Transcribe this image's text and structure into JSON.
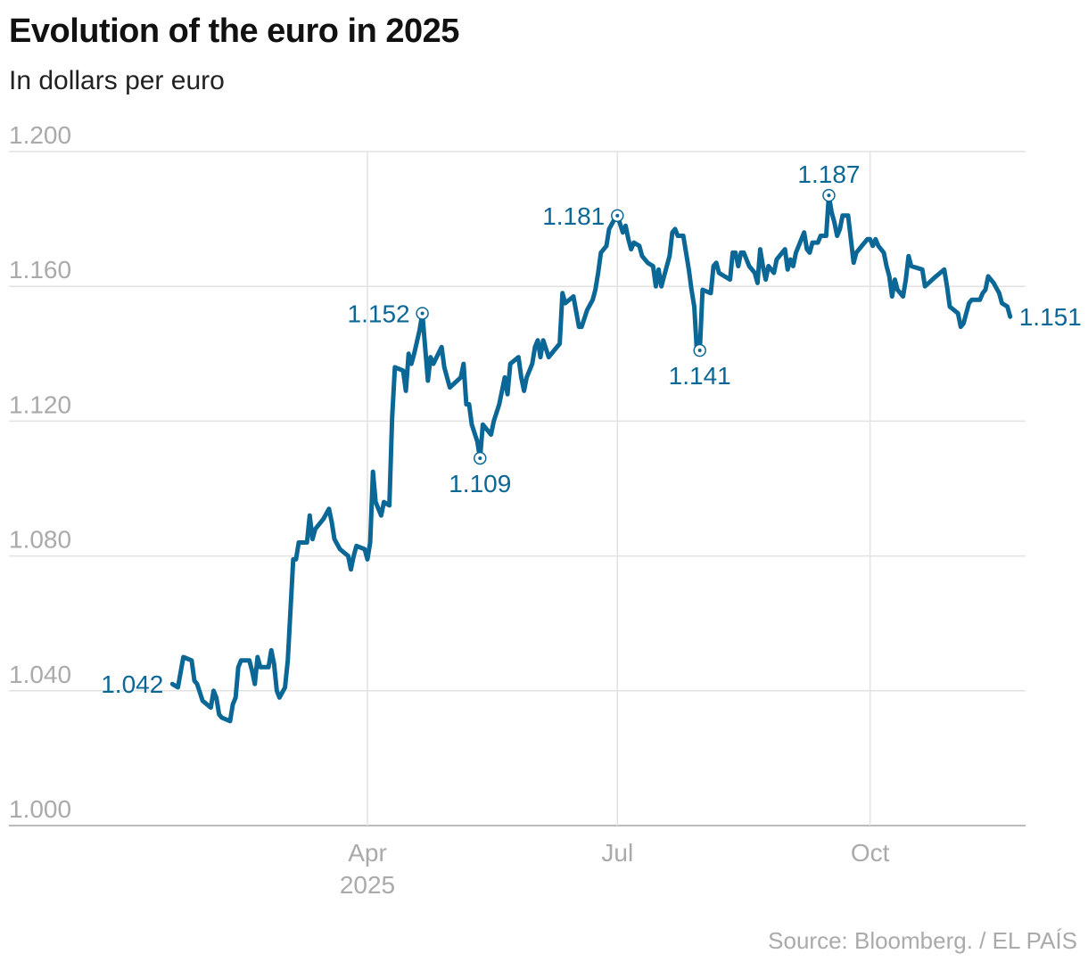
{
  "chart_data": {
    "type": "line",
    "title": "Evolution of the euro in 2025",
    "subtitle": "In dollars per euro",
    "source": "Source: Bloomberg. / EL PAÍS",
    "ylim": [
      1.0,
      1.2
    ],
    "yticks": [
      "1.000",
      "1.040",
      "1.080",
      "1.120",
      "1.160",
      "1.200"
    ],
    "xticks": [
      {
        "date": "2025-04-01",
        "label": "Apr",
        "sublabel": "2025"
      },
      {
        "date": "2025-07-01",
        "label": "Jul",
        "sublabel": ""
      },
      {
        "date": "2025-10-01",
        "label": "Oct",
        "sublabel": ""
      }
    ],
    "grid": true,
    "color": "#0b6796",
    "annotations": [
      {
        "date": "2025-01-20",
        "value": 1.042,
        "label": "1.042",
        "position": "left",
        "marker": false
      },
      {
        "date": "2025-04-21",
        "value": 1.152,
        "label": "1.152",
        "position": "left",
        "marker": true
      },
      {
        "date": "2025-05-12",
        "value": 1.109,
        "label": "1.109",
        "position": "below",
        "marker": true
      },
      {
        "date": "2025-07-01",
        "value": 1.181,
        "label": "1.181",
        "position": "left",
        "marker": true
      },
      {
        "date": "2025-07-31",
        "value": 1.141,
        "label": "1.141",
        "position": "below",
        "marker": true
      },
      {
        "date": "2025-09-16",
        "value": 1.187,
        "label": "1.187",
        "position": "above",
        "marker": true
      },
      {
        "date": "2025-11-21",
        "value": 1.151,
        "label": "1.151",
        "position": "right",
        "marker": false
      }
    ],
    "series": [
      {
        "points": [
          [
            "2025-01-20",
            1.042
          ],
          [
            "2025-01-22",
            1.041
          ],
          [
            "2025-01-24",
            1.05
          ],
          [
            "2025-01-27",
            1.049
          ],
          [
            "2025-01-28",
            1.043
          ],
          [
            "2025-01-29",
            1.042
          ],
          [
            "2025-01-31",
            1.037
          ],
          [
            "2025-02-03",
            1.035
          ],
          [
            "2025-02-04",
            1.04
          ],
          [
            "2025-02-05",
            1.038
          ],
          [
            "2025-02-06",
            1.033
          ],
          [
            "2025-02-07",
            1.032
          ],
          [
            "2025-02-10",
            1.031
          ],
          [
            "2025-02-11",
            1.036
          ],
          [
            "2025-02-12",
            1.038
          ],
          [
            "2025-02-13",
            1.047
          ],
          [
            "2025-02-14",
            1.049
          ],
          [
            "2025-02-17",
            1.049
          ],
          [
            "2025-02-18",
            1.046
          ],
          [
            "2025-02-19",
            1.042
          ],
          [
            "2025-02-20",
            1.05
          ],
          [
            "2025-02-21",
            1.047
          ],
          [
            "2025-02-24",
            1.047
          ],
          [
            "2025-02-25",
            1.052
          ],
          [
            "2025-02-26",
            1.048
          ],
          [
            "2025-02-27",
            1.04
          ],
          [
            "2025-02-28",
            1.038
          ],
          [
            "2025-03-02",
            1.041
          ],
          [
            "2025-03-03",
            1.049
          ],
          [
            "2025-03-05",
            1.079
          ],
          [
            "2025-03-06",
            1.079
          ],
          [
            "2025-03-07",
            1.084
          ],
          [
            "2025-03-10",
            1.084
          ],
          [
            "2025-03-11",
            1.092
          ],
          [
            "2025-03-12",
            1.085
          ],
          [
            "2025-03-13",
            1.088
          ],
          [
            "2025-03-16",
            1.091
          ],
          [
            "2025-03-18",
            1.094
          ],
          [
            "2025-03-19",
            1.09
          ],
          [
            "2025-03-20",
            1.085
          ],
          [
            "2025-03-22",
            1.082
          ],
          [
            "2025-03-25",
            1.08
          ],
          [
            "2025-03-26",
            1.076
          ],
          [
            "2025-03-27",
            1.08
          ],
          [
            "2025-03-28",
            1.083
          ],
          [
            "2025-03-31",
            1.082
          ],
          [
            "2025-04-01",
            1.079
          ],
          [
            "2025-04-02",
            1.084
          ],
          [
            "2025-04-03",
            1.105
          ],
          [
            "2025-04-04",
            1.096
          ],
          [
            "2025-04-06",
            1.092
          ],
          [
            "2025-04-07",
            1.096
          ],
          [
            "2025-04-09",
            1.095
          ],
          [
            "2025-04-10",
            1.121
          ],
          [
            "2025-04-11",
            1.136
          ],
          [
            "2025-04-14",
            1.135
          ],
          [
            "2025-04-15",
            1.129
          ],
          [
            "2025-04-16",
            1.14
          ],
          [
            "2025-04-17",
            1.137
          ],
          [
            "2025-04-18",
            1.14
          ],
          [
            "2025-04-20",
            1.147
          ],
          [
            "2025-04-21",
            1.152
          ],
          [
            "2025-04-22",
            1.142
          ],
          [
            "2025-04-23",
            1.132
          ],
          [
            "2025-04-24",
            1.139
          ],
          [
            "2025-04-25",
            1.137
          ],
          [
            "2025-04-28",
            1.142
          ],
          [
            "2025-04-29",
            1.136
          ],
          [
            "2025-04-30",
            1.133
          ],
          [
            "2025-05-01",
            1.13
          ],
          [
            "2025-05-05",
            1.133
          ],
          [
            "2025-05-06",
            1.137
          ],
          [
            "2025-05-07",
            1.125
          ],
          [
            "2025-05-08",
            1.125
          ],
          [
            "2025-05-09",
            1.119
          ],
          [
            "2025-05-11",
            1.114
          ],
          [
            "2025-05-12",
            1.109
          ],
          [
            "2025-05-13",
            1.119
          ],
          [
            "2025-05-15",
            1.117
          ],
          [
            "2025-05-16",
            1.116
          ],
          [
            "2025-05-17",
            1.12
          ],
          [
            "2025-05-19",
            1.125
          ],
          [
            "2025-05-20",
            1.129
          ],
          [
            "2025-05-21",
            1.133
          ],
          [
            "2025-05-22",
            1.128
          ],
          [
            "2025-05-23",
            1.137
          ],
          [
            "2025-05-26",
            1.139
          ],
          [
            "2025-05-27",
            1.133
          ],
          [
            "2025-05-28",
            1.129
          ],
          [
            "2025-05-29",
            1.133
          ],
          [
            "2025-05-31",
            1.137
          ],
          [
            "2025-06-01",
            1.142
          ],
          [
            "2025-06-02",
            1.144
          ],
          [
            "2025-06-03",
            1.139
          ],
          [
            "2025-06-04",
            1.144
          ],
          [
            "2025-06-06",
            1.139
          ],
          [
            "2025-06-08",
            1.141
          ],
          [
            "2025-06-10",
            1.143
          ],
          [
            "2025-06-11",
            1.158
          ],
          [
            "2025-06-12",
            1.155
          ],
          [
            "2025-06-15",
            1.157
          ],
          [
            "2025-06-17",
            1.148
          ],
          [
            "2025-06-18",
            1.148
          ],
          [
            "2025-06-20",
            1.153
          ],
          [
            "2025-06-22",
            1.156
          ],
          [
            "2025-06-23",
            1.159
          ],
          [
            "2025-06-24",
            1.164
          ],
          [
            "2025-06-25",
            1.17
          ],
          [
            "2025-06-27",
            1.172
          ],
          [
            "2025-06-28",
            1.177
          ],
          [
            "2025-06-30",
            1.18
          ],
          [
            "2025-07-01",
            1.181
          ],
          [
            "2025-07-03",
            1.176
          ],
          [
            "2025-07-04",
            1.178
          ],
          [
            "2025-07-05",
            1.174
          ],
          [
            "2025-07-06",
            1.171
          ],
          [
            "2025-07-07",
            1.173
          ],
          [
            "2025-07-09",
            1.172
          ],
          [
            "2025-07-10",
            1.169
          ],
          [
            "2025-07-12",
            1.167
          ],
          [
            "2025-07-14",
            1.166
          ],
          [
            "2025-07-15",
            1.16
          ],
          [
            "2025-07-16",
            1.165
          ],
          [
            "2025-07-17",
            1.16
          ],
          [
            "2025-07-18",
            1.163
          ],
          [
            "2025-07-20",
            1.169
          ],
          [
            "2025-07-21",
            1.176
          ],
          [
            "2025-07-22",
            1.177
          ],
          [
            "2025-07-23",
            1.175
          ],
          [
            "2025-07-25",
            1.175
          ],
          [
            "2025-07-26",
            1.17
          ],
          [
            "2025-07-27",
            1.165
          ],
          [
            "2025-07-28",
            1.159
          ],
          [
            "2025-07-29",
            1.154
          ],
          [
            "2025-07-30",
            1.14
          ],
          [
            "2025-07-31",
            1.141
          ],
          [
            "2025-08-01",
            1.159
          ],
          [
            "2025-08-04",
            1.158
          ],
          [
            "2025-08-05",
            1.166
          ],
          [
            "2025-08-06",
            1.167
          ],
          [
            "2025-08-07",
            1.164
          ],
          [
            "2025-08-11",
            1.162
          ],
          [
            "2025-08-12",
            1.17
          ],
          [
            "2025-08-13",
            1.17
          ],
          [
            "2025-08-14",
            1.166
          ],
          [
            "2025-08-15",
            1.17
          ],
          [
            "2025-08-16",
            1.17
          ],
          [
            "2025-08-18",
            1.166
          ],
          [
            "2025-08-20",
            1.164
          ],
          [
            "2025-08-21",
            1.161
          ],
          [
            "2025-08-22",
            1.171
          ],
          [
            "2025-08-23",
            1.166
          ],
          [
            "2025-08-24",
            1.162
          ],
          [
            "2025-08-25",
            1.166
          ],
          [
            "2025-08-27",
            1.164
          ],
          [
            "2025-08-28",
            1.168
          ],
          [
            "2025-08-29",
            1.169
          ],
          [
            "2025-08-31",
            1.171
          ],
          [
            "2025-09-01",
            1.165
          ],
          [
            "2025-09-02",
            1.168
          ],
          [
            "2025-09-03",
            1.166
          ],
          [
            "2025-09-04",
            1.17
          ],
          [
            "2025-09-06",
            1.174
          ],
          [
            "2025-09-07",
            1.176
          ],
          [
            "2025-09-08",
            1.171
          ],
          [
            "2025-09-09",
            1.17
          ],
          [
            "2025-09-10",
            1.173
          ],
          [
            "2025-09-12",
            1.173
          ],
          [
            "2025-09-13",
            1.175
          ],
          [
            "2025-09-15",
            1.175
          ],
          [
            "2025-09-16",
            1.187
          ],
          [
            "2025-09-17",
            1.182
          ],
          [
            "2025-09-18",
            1.179
          ],
          [
            "2025-09-19",
            1.175
          ],
          [
            "2025-09-20",
            1.177
          ],
          [
            "2025-09-21",
            1.181
          ],
          [
            "2025-09-23",
            1.181
          ],
          [
            "2025-09-24",
            1.174
          ],
          [
            "2025-09-25",
            1.167
          ],
          [
            "2025-09-26",
            1.17
          ],
          [
            "2025-09-28",
            1.172
          ],
          [
            "2025-09-30",
            1.174
          ],
          [
            "2025-10-01",
            1.174
          ],
          [
            "2025-10-02",
            1.172
          ],
          [
            "2025-10-03",
            1.174
          ],
          [
            "2025-10-04",
            1.172
          ],
          [
            "2025-10-06",
            1.17
          ],
          [
            "2025-10-07",
            1.166
          ],
          [
            "2025-10-08",
            1.163
          ],
          [
            "2025-10-09",
            1.157
          ],
          [
            "2025-10-10",
            1.162
          ],
          [
            "2025-10-11",
            1.159
          ],
          [
            "2025-10-13",
            1.157
          ],
          [
            "2025-10-14",
            1.162
          ],
          [
            "2025-10-15",
            1.169
          ],
          [
            "2025-10-16",
            1.166
          ],
          [
            "2025-10-20",
            1.165
          ],
          [
            "2025-10-21",
            1.16
          ],
          [
            "2025-10-25",
            1.163
          ],
          [
            "2025-10-28",
            1.165
          ],
          [
            "2025-10-29",
            1.16
          ],
          [
            "2025-10-30",
            1.154
          ],
          [
            "2025-11-02",
            1.152
          ],
          [
            "2025-11-03",
            1.148
          ],
          [
            "2025-11-04",
            1.149
          ],
          [
            "2025-11-06",
            1.155
          ],
          [
            "2025-11-07",
            1.156
          ],
          [
            "2025-11-10",
            1.156
          ],
          [
            "2025-11-11",
            1.158
          ],
          [
            "2025-11-12",
            1.159
          ],
          [
            "2025-11-13",
            1.163
          ],
          [
            "2025-11-15",
            1.161
          ],
          [
            "2025-11-17",
            1.158
          ],
          [
            "2025-11-18",
            1.155
          ],
          [
            "2025-11-20",
            1.154
          ],
          [
            "2025-11-21",
            1.151
          ]
        ]
      }
    ]
  }
}
